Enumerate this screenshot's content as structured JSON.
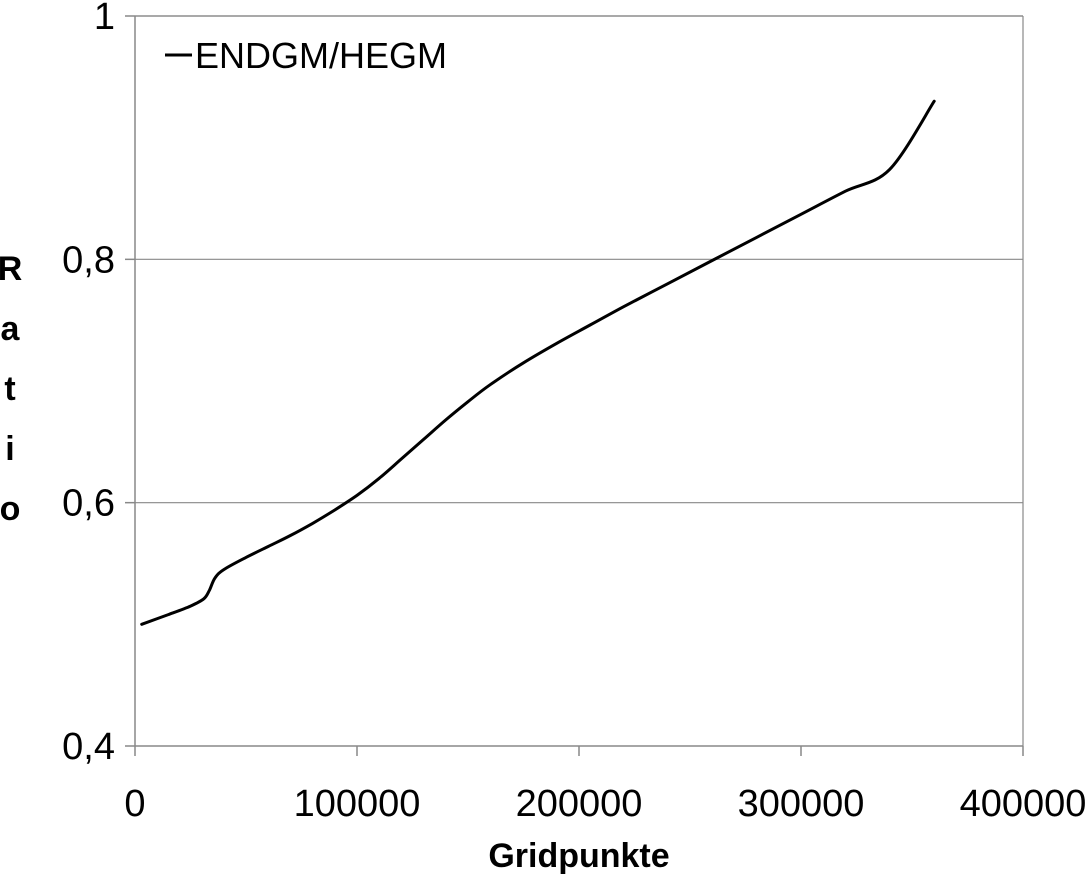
{
  "chart_data": {
    "type": "line",
    "title": "",
    "xlabel": "Gridpunkte",
    "ylabel": "Ratio",
    "xlim": [
      0,
      400000
    ],
    "ylim": [
      0.4,
      1.0
    ],
    "x_ticks": [
      0,
      100000,
      200000,
      300000,
      400000
    ],
    "x_tick_labels": [
      "0",
      "100000",
      "200000",
      "300000",
      "400000"
    ],
    "y_ticks": [
      0.4,
      0.6,
      0.8,
      1.0
    ],
    "y_tick_labels": [
      "0,4",
      "0,6",
      "0,8",
      "1"
    ],
    "grid": "horizontal",
    "legend_position": "top-left",
    "series": [
      {
        "name": "ENDGM/HEGM",
        "color": "#000000",
        "x": [
          3000,
          15000,
          25000,
          31000,
          33500,
          36000,
          40000,
          50000,
          60000,
          70000,
          80000,
          90000,
          100000,
          110000,
          120000,
          130000,
          140000,
          150000,
          160000,
          175000,
          190000,
          205000,
          220000,
          240000,
          260000,
          280000,
          300000,
          320000,
          340000,
          360000
        ],
        "y": [
          0.5,
          0.508,
          0.515,
          0.521,
          0.528,
          0.538,
          0.545,
          0.555,
          0.564,
          0.573,
          0.583,
          0.594,
          0.606,
          0.62,
          0.636,
          0.652,
          0.668,
          0.683,
          0.697,
          0.715,
          0.731,
          0.746,
          0.761,
          0.78,
          0.799,
          0.818,
          0.837,
          0.856,
          0.874,
          0.93
        ]
      }
    ]
  }
}
